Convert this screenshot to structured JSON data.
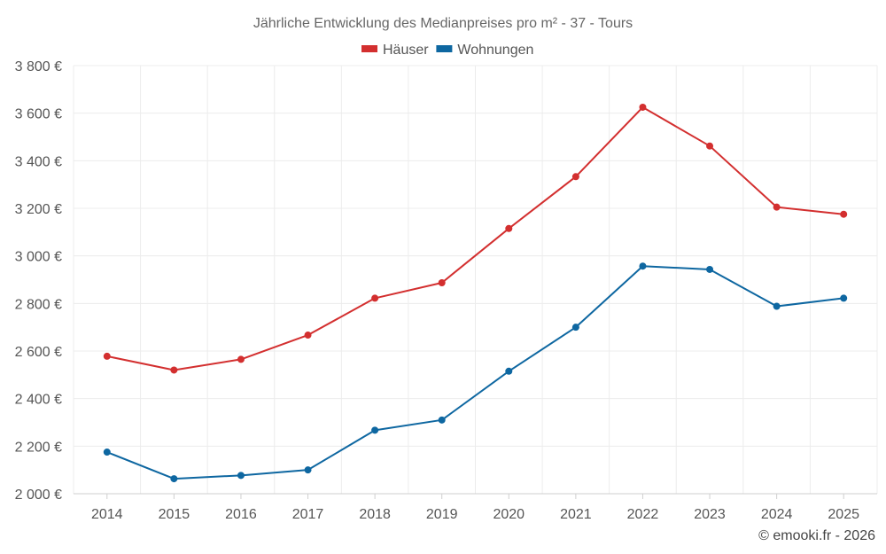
{
  "chart_data": {
    "type": "line",
    "title": "Jährliche Entwicklung des Medianpreises pro m² - 37 - Tours",
    "categories": [
      "2014",
      "2015",
      "2016",
      "2017",
      "2018",
      "2019",
      "2020",
      "2021",
      "2022",
      "2023",
      "2024",
      "2025"
    ],
    "series": [
      {
        "name": "Häuser",
        "color": "#d32f2f",
        "values": [
          2578,
          2520,
          2565,
          2667,
          2822,
          2887,
          3115,
          3333,
          3625,
          3462,
          3205,
          3175
        ]
      },
      {
        "name": "Wohnungen",
        "color": "#0e67a1",
        "values": [
          2175,
          2063,
          2077,
          2100,
          2267,
          2310,
          2515,
          2700,
          2957,
          2943,
          2788,
          2822
        ]
      }
    ],
    "ylim": [
      2000,
      3800
    ],
    "yticks": [
      2000,
      2200,
      2400,
      2600,
      2800,
      3000,
      3200,
      3400,
      3600,
      3800
    ],
    "ytick_labels": [
      "2 000 €",
      "2 200 €",
      "2 400 €",
      "2 600 €",
      "2 800 €",
      "3 000 €",
      "3 200 €",
      "3 400 €",
      "3 600 €",
      "3 800 €"
    ],
    "grid": true,
    "legend_position": "top-center"
  },
  "credit": "© emooki.fr - 2026"
}
